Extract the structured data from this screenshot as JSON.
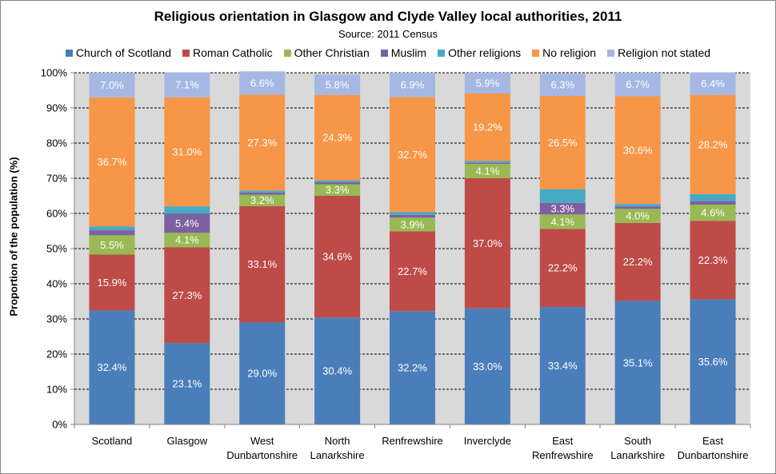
{
  "chart_data": {
    "type": "stacked-bar",
    "title": "Religious orientation in Glasgow and Clyde Valley local authorities, 2011",
    "subtitle": "Source: 2011 Census",
    "xlabel": "",
    "ylabel": "Proportion of the population (%)",
    "ylim": [
      0,
      100
    ],
    "y_ticks": [
      "0%",
      "10%",
      "20%",
      "30%",
      "40%",
      "50%",
      "60%",
      "70%",
      "80%",
      "90%",
      "100%"
    ],
    "grid": true,
    "legend_position": "top",
    "categories": [
      [
        "Scotland"
      ],
      [
        "Glasgow"
      ],
      [
        "West",
        "Dunbartonshire"
      ],
      [
        "North",
        "Lanarkshire"
      ],
      [
        "Renfrewshire"
      ],
      [
        "Inverclyde"
      ],
      [
        "East",
        "Renfrewshire"
      ],
      [
        "South",
        "Lanarkshire"
      ],
      [
        "East",
        "Dunbartonshire"
      ]
    ],
    "series": [
      {
        "name": "Church of Scotland",
        "color": "#4a7ebb",
        "values": [
          32.4,
          23.1,
          29.0,
          30.4,
          32.2,
          33.0,
          33.4,
          35.1,
          35.6
        ],
        "labels": [
          "32.4%",
          "23.1%",
          "29.0%",
          "30.4%",
          "32.2%",
          "33.0%",
          "33.4%",
          "35.1%",
          "35.6%"
        ]
      },
      {
        "name": "Roman Catholic",
        "color": "#be4b48",
        "values": [
          15.9,
          27.3,
          33.1,
          34.6,
          22.7,
          37.0,
          22.2,
          22.2,
          22.3
        ],
        "labels": [
          "15.9%",
          "27.3%",
          "33.1%",
          "34.6%",
          "22.7%",
          "37.0%",
          "22.2%",
          "22.2%",
          "22.3%"
        ]
      },
      {
        "name": "Other Christian",
        "color": "#98b954",
        "values": [
          5.5,
          4.1,
          3.2,
          3.3,
          3.9,
          4.1,
          4.1,
          4.0,
          4.6
        ],
        "labels": [
          "5.5%",
          "4.1%",
          "3.2%",
          "3.3%",
          "3.9%",
          "4.1%",
          "4.1%",
          "4.0%",
          "4.6%"
        ]
      },
      {
        "name": "Muslim",
        "color": "#7d60a0",
        "values": [
          1.4,
          5.4,
          0.6,
          0.6,
          0.8,
          0.3,
          3.3,
          0.7,
          1.0
        ],
        "labels": [
          "",
          "5.4%",
          "",
          "",
          "",
          "",
          "3.3%",
          "",
          ""
        ]
      },
      {
        "name": "Other religions",
        "color": "#46aac5",
        "values": [
          1.1,
          2.1,
          0.6,
          0.5,
          0.8,
          0.5,
          3.9,
          0.7,
          2.0
        ],
        "labels": [
          "",
          "",
          "",
          "",
          "",
          "",
          "",
          "",
          ""
        ]
      },
      {
        "name": "No religion",
        "color": "#f79646",
        "values": [
          36.7,
          31.0,
          27.3,
          24.3,
          32.7,
          19.2,
          26.5,
          30.6,
          28.2
        ],
        "labels": [
          "36.7%",
          "31.0%",
          "27.3%",
          "24.3%",
          "32.7%",
          "19.2%",
          "26.5%",
          "30.6%",
          "28.2%"
        ]
      },
      {
        "name": "Religion not stated",
        "color": "#a5b8e3",
        "values": [
          7.0,
          7.1,
          6.6,
          5.8,
          6.9,
          5.9,
          6.3,
          6.7,
          6.4
        ],
        "labels": [
          "7.0%",
          "7.1%",
          "6.6%",
          "5.8%",
          "6.9%",
          "5.9%",
          "6.3%",
          "6.7%",
          "6.4%"
        ]
      }
    ]
  }
}
